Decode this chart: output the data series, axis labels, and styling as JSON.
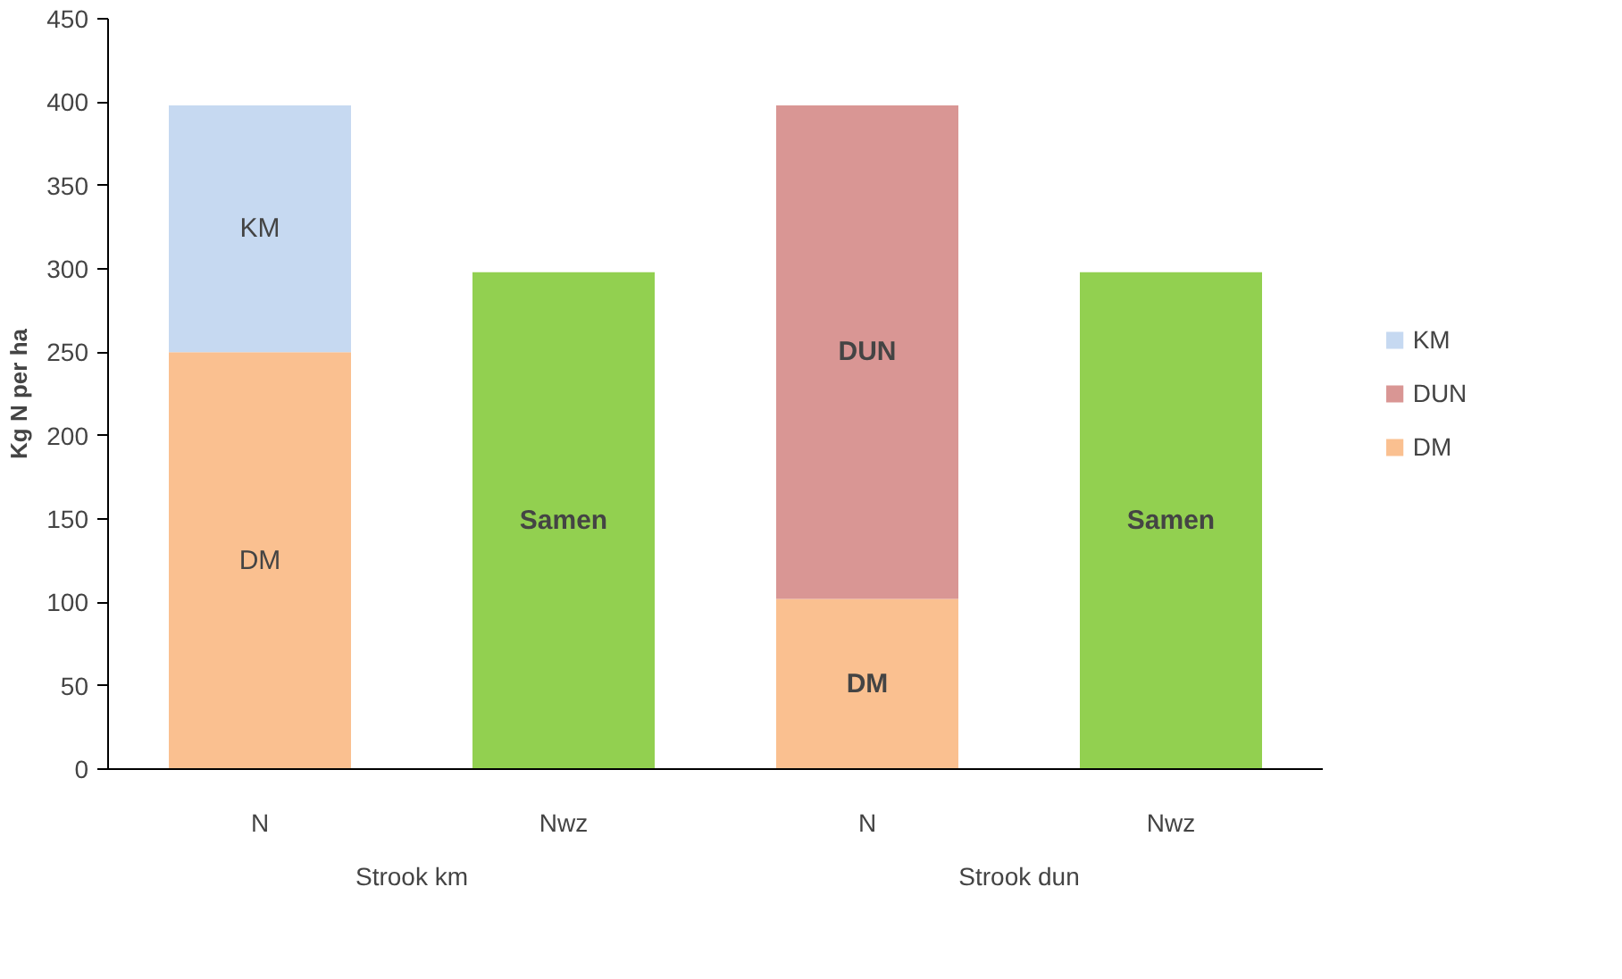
{
  "chart_data": {
    "type": "bar",
    "stacked": true,
    "ylabel": "Kg N per ha",
    "categories": [
      "N",
      "Nwz",
      "N",
      "Nwz"
    ],
    "series": [
      {
        "name": "DM",
        "color": "#fac090",
        "values": [
          250,
          null,
          102,
          null
        ],
        "value_labels": [
          "DM",
          null,
          "DM",
          null
        ]
      },
      {
        "name": "DUN",
        "color": "#d99694",
        "values": [
          null,
          null,
          296,
          null
        ],
        "value_labels": [
          null,
          null,
          "DUN",
          null
        ]
      },
      {
        "name": "KM",
        "color": "#c6d9f1",
        "values": [
          148,
          null,
          null,
          null
        ],
        "value_labels": [
          "KM",
          null,
          null,
          null
        ]
      },
      {
        "color": "#92d050",
        "values": [
          null,
          298,
          null,
          298
        ],
        "value_labels": [
          null,
          "Samen",
          null,
          "Samen"
        ]
      }
    ],
    "ylim": [
      0,
      450
    ],
    "yticks": [
      0,
      50,
      100,
      150,
      200,
      250,
      300,
      350,
      400,
      450
    ],
    "grid": false,
    "legend": "right",
    "annotations": [
      "Strook km",
      "Strook dun"
    ]
  }
}
